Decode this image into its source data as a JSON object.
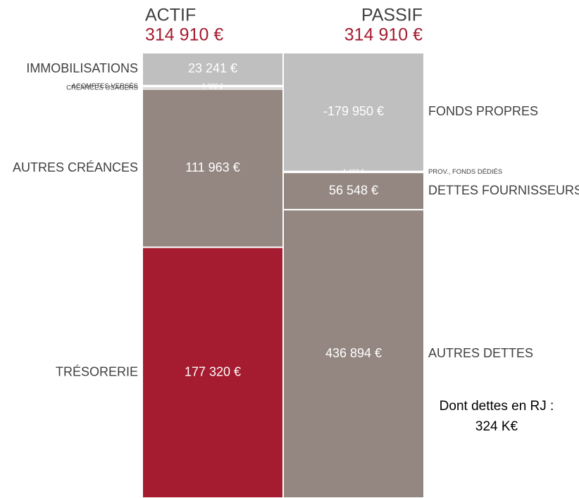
{
  "chart_data": {
    "type": "balance",
    "columns": [
      {
        "name": "ACTIF",
        "total": 314910,
        "total_label": "314 910 €",
        "label_side": "left",
        "segments": [
          {
            "name": "IMMOBILISATIONS",
            "value": 23241,
            "value_label": "23 241 €",
            "color": "#bfbfbf"
          },
          {
            "name": "ACOMPTES VERSÉS",
            "value": 1000,
            "value_label": "1 000 €",
            "color": "#948781"
          },
          {
            "name": "CRÉANCES USAGERS",
            "value": 1386,
            "value_label": "1 386 €",
            "color": "#948781"
          },
          {
            "name": "AUTRES CRÉANCES",
            "value": 111963,
            "value_label": "111 963 €",
            "color": "#948781"
          },
          {
            "name": "TRÉSORERIE",
            "value": 177320,
            "value_label": "177 320 €",
            "color": "#a51c30"
          }
        ]
      },
      {
        "name": "PASSIF",
        "total": 314910,
        "total_label": "314 910 €",
        "label_side": "right",
        "segments": [
          {
            "name": "FONDS PROPRES",
            "value": -179950,
            "value_label": "-179 950 €",
            "color": "#bfbfbf"
          },
          {
            "name": "PROV., FONDS DÉDIÉS",
            "value": 1418,
            "value_label": "1 418 €",
            "color": "#bfbfbf"
          },
          {
            "name": "DETTES FOURNISSEURS",
            "value": 56548,
            "value_label": "56 548 €",
            "color": "#948781"
          },
          {
            "name": "AUTRES DETTES",
            "value": 436894,
            "value_label": "436 894 €",
            "color": "#948781"
          }
        ]
      }
    ],
    "annotation": [
      "Dont dettes en RJ :",
      "324 K€"
    ]
  }
}
